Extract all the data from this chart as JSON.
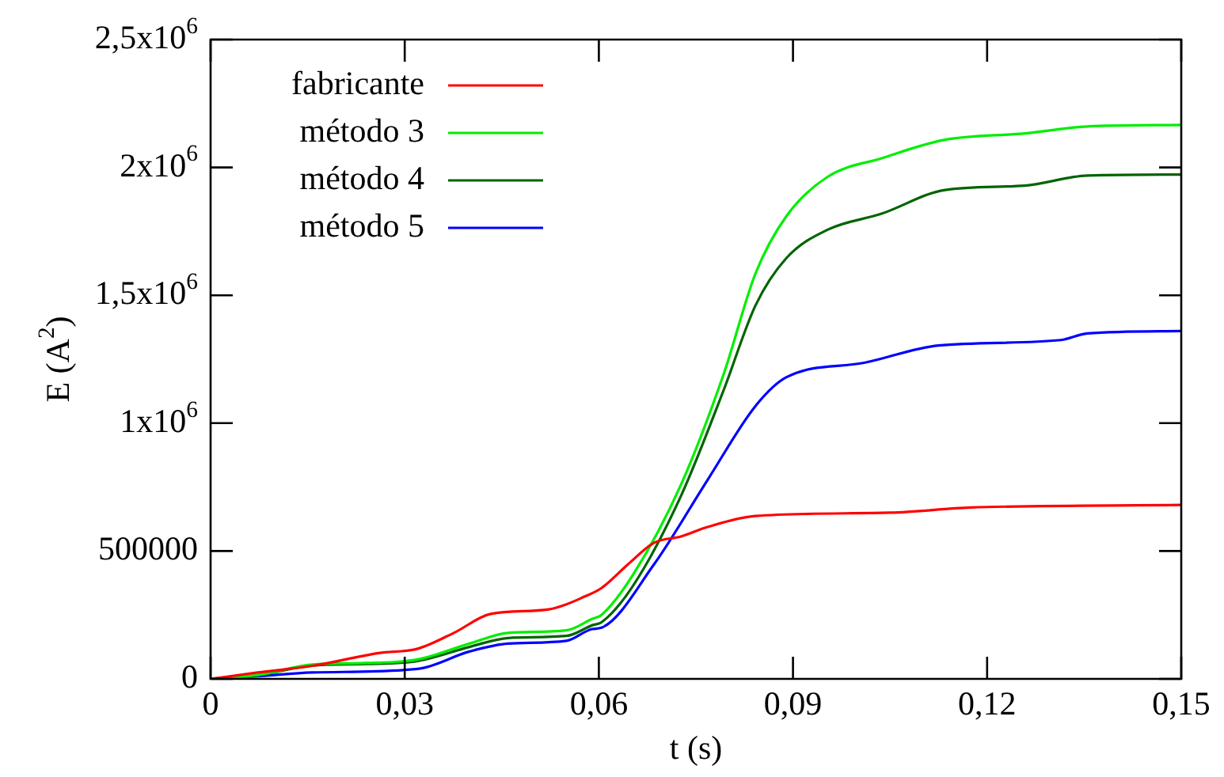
{
  "chart_data": {
    "type": "line",
    "xlabel": "t (s)",
    "ylabel": "E (A$^{2}$)",
    "xlim": [
      0,
      0.15
    ],
    "ylim": [
      0,
      2500000
    ],
    "xticks": [
      {
        "value": 0,
        "label": "0"
      },
      {
        "value": 0.03,
        "label": "0,03"
      },
      {
        "value": 0.06,
        "label": "0,06"
      },
      {
        "value": 0.09,
        "label": "0,09"
      },
      {
        "value": 0.12,
        "label": "0,12"
      },
      {
        "value": 0.15,
        "label": "0,15"
      }
    ],
    "yticks": [
      0,
      500000,
      {
        "value": 1000000,
        "label": "1x10$^{6}$"
      },
      {
        "value": 1500000,
        "label": "1,5x10$^{6}$"
      },
      {
        "value": 2000000,
        "label": "2x10$^{6}$"
      },
      {
        "value": 2500000,
        "label": "2,5x10$^{6}$"
      }
    ],
    "grid": false,
    "legend": "top left",
    "marker": "none",
    "line_style": "solid",
    "series": [
      {
        "name": "fabricante",
        "color": "#ff0000",
        "x": [
          0,
          0.0073,
          0.0157,
          0.026,
          0.032,
          0.0376,
          0.0433,
          0.0523,
          0.058,
          0.0604,
          0.0645,
          0.0685,
          0.0727,
          0.0768,
          0.0842,
          0.105,
          0.1175,
          0.15
        ],
        "values": [
          0,
          25000,
          51000,
          101000,
          118000,
          180000,
          254000,
          272000,
          324000,
          355000,
          448000,
          532000,
          557000,
          594000,
          637000,
          650000,
          670000,
          680000
        ]
      },
      {
        "name": "método 3",
        "color": "#00ee00",
        "x": [
          0,
          0.0073,
          0.0157,
          0.024,
          0.032,
          0.04,
          0.046,
          0.055,
          0.059,
          0.0604,
          0.0653,
          0.0727,
          0.0793,
          0.0842,
          0.089,
          0.0954,
          0.1037,
          0.1135,
          0.1258,
          0.1355,
          0.15
        ],
        "values": [
          0,
          15000,
          56000,
          62000,
          76000,
          138000,
          180000,
          190000,
          235000,
          250000,
          408000,
          760000,
          1193000,
          1585000,
          1810000,
          1964000,
          2036000,
          2108000,
          2133000,
          2160000,
          2166000
        ]
      },
      {
        "name": "método 4",
        "color": "#006400",
        "x": [
          0,
          0.0073,
          0.0157,
          0.024,
          0.032,
          0.04,
          0.046,
          0.055,
          0.059,
          0.0604,
          0.0653,
          0.0727,
          0.0793,
          0.0842,
          0.089,
          0.0954,
          0.1037,
          0.1135,
          0.1258,
          0.1355,
          0.15
        ],
        "values": [
          0,
          14000,
          52000,
          58000,
          70000,
          125000,
          160000,
          168000,
          210000,
          221000,
          365000,
          716000,
          1130000,
          1460000,
          1646000,
          1757000,
          1819000,
          1912000,
          1929000,
          1968000,
          1972000
        ]
      },
      {
        "name": "método 5",
        "color": "#0000ff",
        "x": [
          0,
          0.0073,
          0.0157,
          0.032,
          0.04,
          0.046,
          0.055,
          0.059,
          0.0604,
          0.0685,
          0.0768,
          0.0842,
          0.089,
          0.101,
          0.1125,
          0.1314,
          0.1355,
          0.15
        ],
        "values": [
          0,
          10000,
          25000,
          39000,
          107000,
          138000,
          149000,
          195000,
          200000,
          447000,
          778000,
          1067000,
          1180000,
          1236000,
          1304000,
          1325000,
          1351000,
          1360000
        ]
      }
    ]
  }
}
